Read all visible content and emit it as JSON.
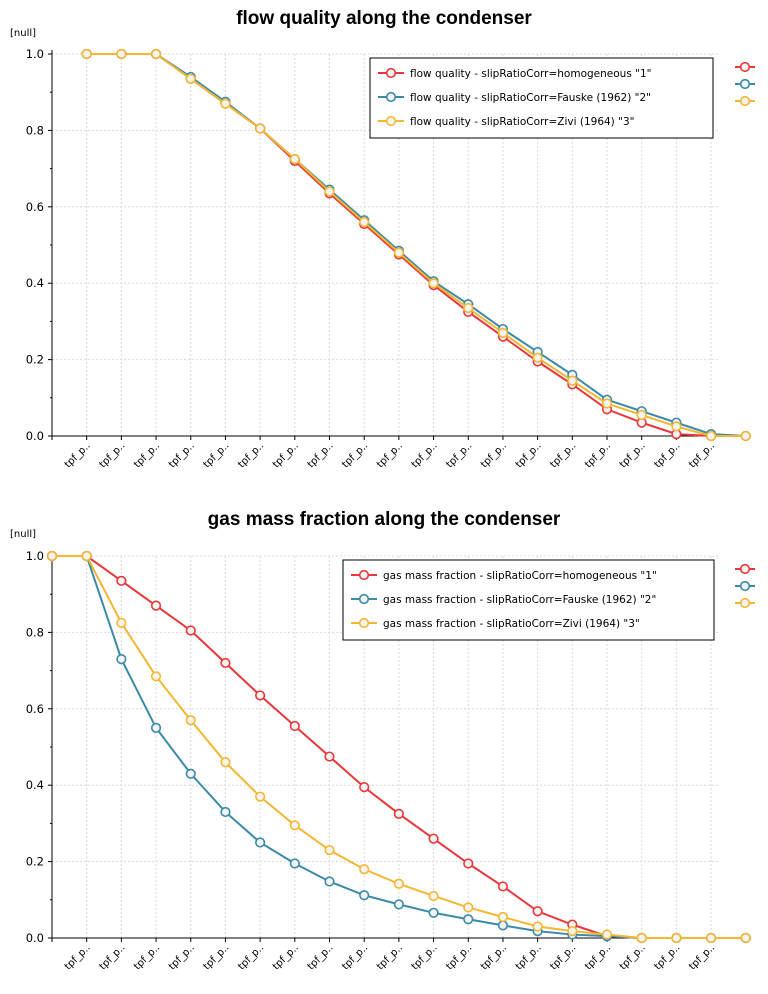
{
  "chart_data": [
    {
      "type": "line",
      "title": "flow quality along the condenser",
      "ylabel": "[null]",
      "xlabel": "",
      "ylim": [
        0,
        1
      ],
      "yticks": [
        "0.0",
        "0.2",
        "0.4",
        "0.6",
        "0.8",
        "1.0"
      ],
      "x_tick_label": "tpf_p..",
      "categories": 21,
      "legend_position": "top-right",
      "series": [
        {
          "name": "flow quality - slipRatioCorr=homogeneous  \"1\"",
          "color": "#e8373a",
          "x": [
            1,
            2,
            3,
            4,
            5,
            6,
            7,
            8,
            9,
            10,
            11,
            12,
            13,
            14,
            15,
            16,
            17,
            18,
            19,
            20
          ],
          "values": [
            1.0,
            1.0,
            1.0,
            0.935,
            0.87,
            0.805,
            0.72,
            0.635,
            0.555,
            0.475,
            0.395,
            0.325,
            0.26,
            0.195,
            0.135,
            0.07,
            0.035,
            0.005,
            0.0,
            0.0
          ]
        },
        {
          "name": "flow quality - slipRatioCorr=Fauske (1962)  \"2\"",
          "color": "#3a8aa8",
          "x": [
            1,
            2,
            3,
            4,
            5,
            6,
            7,
            8,
            9,
            10,
            11,
            12,
            13,
            14,
            15,
            16,
            17,
            18,
            19,
            20
          ],
          "values": [
            1.0,
            1.0,
            1.0,
            0.94,
            0.875,
            0.805,
            0.725,
            0.645,
            0.565,
            0.485,
            0.405,
            0.345,
            0.28,
            0.22,
            0.16,
            0.095,
            0.065,
            0.035,
            0.005,
            0.0
          ]
        },
        {
          "name": "flow quality - slipRatioCorr=Zivi (1964)  \"3\"",
          "color": "#f5b731",
          "x": [
            1,
            2,
            3,
            4,
            5,
            6,
            7,
            8,
            9,
            10,
            11,
            12,
            13,
            14,
            15,
            16,
            17,
            18,
            19,
            20
          ],
          "values": [
            1.0,
            1.0,
            1.0,
            0.935,
            0.87,
            0.805,
            0.725,
            0.64,
            0.56,
            0.48,
            0.4,
            0.335,
            0.27,
            0.205,
            0.145,
            0.085,
            0.055,
            0.025,
            0.0,
            0.0
          ]
        }
      ]
    },
    {
      "type": "line",
      "title": "gas mass fraction along the condenser",
      "ylabel": "[null]",
      "xlabel": "",
      "ylim": [
        0,
        1
      ],
      "yticks": [
        "0.0",
        "0.2",
        "0.4",
        "0.6",
        "0.8",
        "1.0"
      ],
      "x_tick_label": "tpf_p..",
      "categories": 21,
      "legend_position": "top-right",
      "series": [
        {
          "name": "gas mass fraction - slipRatioCorr=homogeneous  \"1\"",
          "color": "#e8373a",
          "x": [
            0,
            1,
            2,
            3,
            4,
            5,
            6,
            7,
            8,
            9,
            10,
            11,
            12,
            13,
            14,
            15,
            16,
            17,
            18,
            19,
            20
          ],
          "values": [
            1.0,
            1.0,
            0.935,
            0.87,
            0.805,
            0.72,
            0.635,
            0.555,
            0.475,
            0.395,
            0.325,
            0.26,
            0.195,
            0.135,
            0.07,
            0.035,
            0.005,
            0.0,
            0.0,
            0.0,
            0.0
          ]
        },
        {
          "name": "gas mass fraction - slipRatioCorr=Fauske (1962)  \"2\"",
          "color": "#3a8aa8",
          "x": [
            0,
            1,
            2,
            3,
            4,
            5,
            6,
            7,
            8,
            9,
            10,
            11,
            12,
            13,
            14,
            15,
            16,
            17,
            18,
            19,
            20
          ],
          "values": [
            1.0,
            1.0,
            0.73,
            0.55,
            0.43,
            0.33,
            0.25,
            0.195,
            0.148,
            0.112,
            0.088,
            0.066,
            0.049,
            0.033,
            0.018,
            0.009,
            0.005,
            0.0,
            0.0,
            0.0,
            0.0
          ]
        },
        {
          "name": "gas mass fraction - slipRatioCorr=Zivi (1964)  \"3\"",
          "color": "#f5b731",
          "x": [
            0,
            1,
            2,
            3,
            4,
            5,
            6,
            7,
            8,
            9,
            10,
            11,
            12,
            13,
            14,
            15,
            16,
            17,
            18,
            19,
            20
          ],
          "values": [
            1.0,
            1.0,
            0.825,
            0.685,
            0.57,
            0.46,
            0.37,
            0.295,
            0.23,
            0.18,
            0.142,
            0.11,
            0.08,
            0.055,
            0.03,
            0.018,
            0.009,
            0.0,
            0.0,
            0.0,
            0.0
          ]
        }
      ]
    }
  ]
}
